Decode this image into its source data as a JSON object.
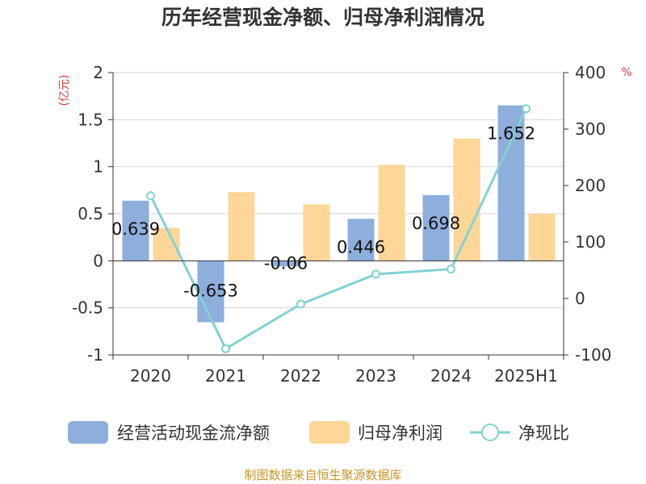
{
  "chart_data": {
    "type": "bar",
    "title": "历年经营现金净额、归母净利润情况",
    "categories": [
      "2020",
      "2021",
      "2022",
      "2023",
      "2024",
      "2025H1"
    ],
    "y_left": {
      "unit_label": "(亿元)",
      "ticks": [
        "2",
        "1.5",
        "1",
        "0.5",
        "0",
        "-0.5",
        "-1"
      ],
      "ylim": [
        -1,
        2
      ]
    },
    "y_right": {
      "unit_label": "%",
      "ticks": [
        "400",
        "300",
        "200",
        "100",
        "0",
        "-100"
      ],
      "ylim": [
        -100,
        400
      ]
    },
    "series": [
      {
        "name": "经营活动现金流净额",
        "axis": "left",
        "kind": "bar",
        "values": [
          0.639,
          -0.653,
          -0.06,
          0.446,
          0.698,
          1.652
        ],
        "labels": [
          "0.639",
          "-0.653",
          "-0.06",
          "0.446",
          "0.698",
          "1.652"
        ]
      },
      {
        "name": "归母净利润",
        "axis": "left",
        "kind": "bar",
        "values": [
          0.35,
          0.73,
          0.6,
          1.02,
          1.3,
          0.5
        ]
      },
      {
        "name": "净现比",
        "axis": "right",
        "kind": "line",
        "values": [
          182,
          -89,
          -10,
          43,
          52,
          336
        ]
      }
    ],
    "colors": {
      "cash_flow": "#8eaedc",
      "net_profit": "#fdd698",
      "ratio_line": "#83d2d2",
      "grid": "#d6d6d6",
      "axis": "#333333"
    },
    "grid": true,
    "legend_position": "bottom",
    "source": "制图数据来自恒生聚源数据库"
  }
}
